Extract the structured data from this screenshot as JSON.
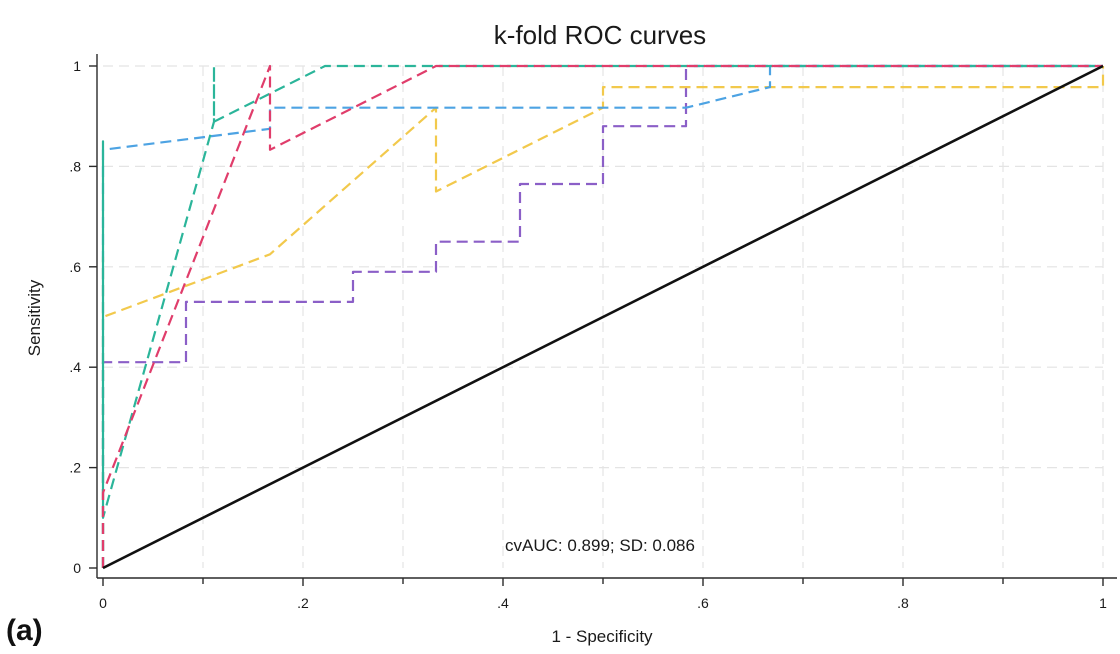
{
  "chart_data": {
    "type": "line",
    "title": "k-fold ROC curves",
    "xlabel": "1 - Specificity",
    "ylabel": "Sensitivity",
    "xlim": [
      0,
      1
    ],
    "ylim": [
      0,
      1
    ],
    "x_ticks": [
      0,
      0.2,
      0.4,
      0.6,
      0.8,
      1
    ],
    "x_tick_labels": [
      "0",
      ".2",
      ".4",
      ".6",
      ".8",
      "1"
    ],
    "y_ticks": [
      0,
      0.2,
      0.4,
      0.6,
      0.8,
      1
    ],
    "y_tick_labels": [
      "0",
      ".2",
      ".4",
      ".6",
      ".8",
      "1"
    ],
    "grid": true,
    "annotation": "cvAUC: 0.899; SD: 0.086",
    "panel_label": "(a)",
    "series": [
      {
        "color": "#8b5fc7",
        "dashed": true,
        "x": [
          0,
          0,
          0.083,
          0.083,
          0.25,
          0.25,
          0.333,
          0.333,
          0.417,
          0.417,
          0.5,
          0.5,
          0.583,
          0.583,
          1
        ],
        "y": [
          0,
          0.41,
          0.41,
          0.53,
          0.53,
          0.59,
          0.59,
          0.65,
          0.65,
          0.765,
          0.765,
          0.88,
          0.88,
          1,
          1
        ]
      },
      {
        "color": "#f2c94c",
        "dashed": true,
        "x": [
          0,
          0,
          0,
          0.167,
          0.333,
          0.333,
          0.5,
          0.5,
          1,
          1
        ],
        "y": [
          0,
          0.62,
          0.5,
          0.625,
          0.917,
          0.75,
          0.917,
          0.958,
          0.958,
          1
        ]
      },
      {
        "color": "#4da3e3",
        "dashed": true,
        "x": [
          0,
          0,
          0.167,
          0.167,
          0.583,
          0.667,
          0.667,
          0.833,
          1
        ],
        "y": [
          0,
          0.833,
          0.875,
          0.917,
          0.917,
          0.958,
          1,
          1,
          1
        ]
      },
      {
        "color": "#2bb59a",
        "dashed": true,
        "x": [
          0,
          0,
          0,
          0.111,
          0.111,
          0.111,
          0.222,
          1
        ],
        "y": [
          0,
          0.85,
          0.1,
          0.889,
          1,
          0.889,
          1,
          1
        ]
      },
      {
        "color": "#e03d6b",
        "dashed": true,
        "x": [
          0,
          0,
          0.167,
          0.167,
          0.333,
          1
        ],
        "y": [
          0,
          0.15,
          1,
          0.833,
          1,
          1
        ]
      },
      {
        "color": "#111111",
        "dashed": false,
        "x": [
          0,
          1
        ],
        "y": [
          0,
          1
        ]
      }
    ]
  }
}
